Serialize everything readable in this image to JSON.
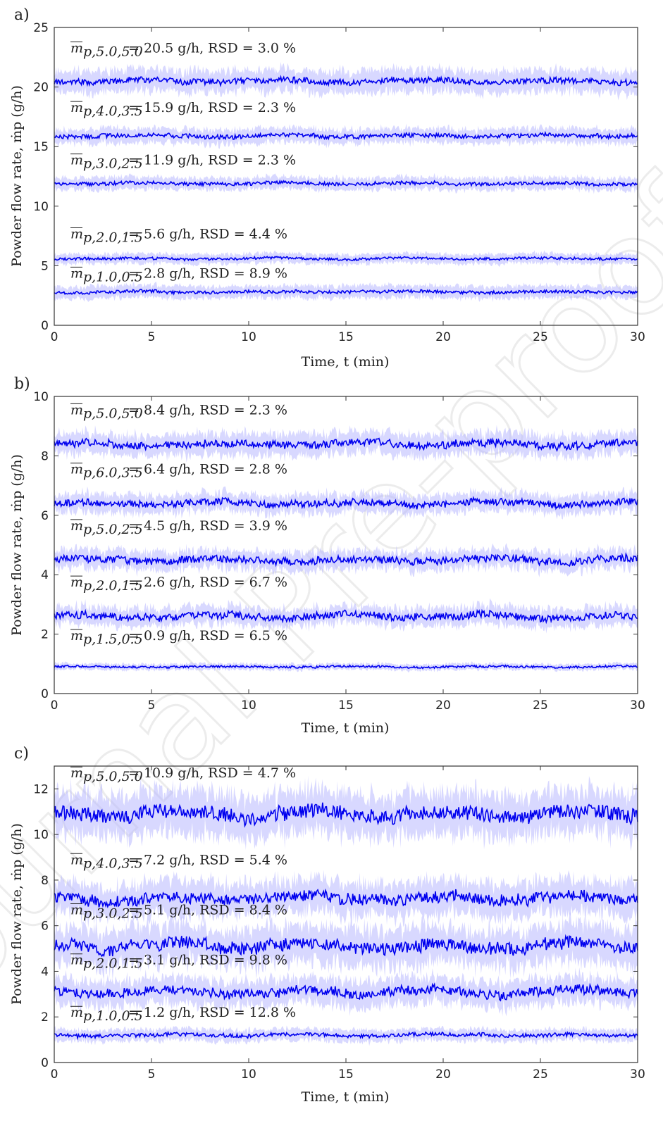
{
  "watermark": "Journal Pre-proof",
  "chart_data": [
    {
      "panel": "a)",
      "type": "line",
      "xlabel": "Time, t (min)",
      "ylabel": "Powder flow rate, ṁp (g/h)",
      "xlim": [
        0,
        30
      ],
      "ylim": [
        0,
        25
      ],
      "xticks": [
        0,
        5,
        10,
        15,
        20,
        25,
        30
      ],
      "yticks": [
        0,
        5,
        10,
        15,
        20,
        25
      ],
      "series": [
        {
          "sub": "p,5.0,5.0",
          "mean": 20.5,
          "rsd": 3.0,
          "label": "= 20.5 g/h, RSD = 3.0 %",
          "amp": 0.35,
          "band": 0.9
        },
        {
          "sub": "p,4.0,3.5",
          "mean": 15.9,
          "rsd": 2.3,
          "label": "= 15.9 g/h, RSD = 2.3 %",
          "amp": 0.25,
          "band": 0.6
        },
        {
          "sub": "p,3.0,2.5",
          "mean": 11.9,
          "rsd": 2.3,
          "label": "= 11.9 g/h, RSD = 2.3 %",
          "amp": 0.2,
          "band": 0.5
        },
        {
          "sub": "p,2.0,1.5",
          "mean": 5.6,
          "rsd": 4.4,
          "label": "= 5.6 g/h, RSD = 4.4 %",
          "amp": 0.15,
          "band": 0.4
        },
        {
          "sub": "p,1.0,0.5",
          "mean": 2.8,
          "rsd": 8.9,
          "label": "= 2.8 g/h, RSD = 8.9 %",
          "amp": 0.18,
          "band": 0.5
        }
      ]
    },
    {
      "panel": "b)",
      "type": "line",
      "xlabel": "Time, t (min)",
      "ylabel": "Powder flow rate, ṁp (g/h)",
      "xlim": [
        0,
        30
      ],
      "ylim": [
        0,
        10
      ],
      "xticks": [
        0,
        5,
        10,
        15,
        20,
        25,
        30
      ],
      "yticks": [
        0,
        2,
        4,
        6,
        8,
        10
      ],
      "series": [
        {
          "sub": "p,5.0,5.0",
          "mean": 8.4,
          "rsd": 2.3,
          "label": "= 8.4 g/h, RSD = 2.3 %",
          "amp": 0.18,
          "band": 0.35
        },
        {
          "sub": "p,6.0,3.5",
          "mean": 6.4,
          "rsd": 2.8,
          "label": "= 6.4 g/h, RSD = 2.8 %",
          "amp": 0.16,
          "band": 0.3
        },
        {
          "sub": "p,5.0,2.5",
          "mean": 4.5,
          "rsd": 3.9,
          "label": "= 4.5 g/h, RSD = 3.9 %",
          "amp": 0.17,
          "band": 0.3
        },
        {
          "sub": "p,2.0,1.5",
          "mean": 2.6,
          "rsd": 6.7,
          "label": "= 2.6 g/h, RSD = 6.7 %",
          "amp": 0.17,
          "band": 0.3
        },
        {
          "sub": "p,1.5,0.5",
          "mean": 0.9,
          "rsd": 6.5,
          "label": "= 0.9 g/h, RSD = 6.5 %",
          "amp": 0.05,
          "band": 0.1
        }
      ]
    },
    {
      "panel": "c)",
      "type": "line",
      "xlabel": "Time, t (min)",
      "ylabel": "Powder flow rate, ṁp (g/h)",
      "xlim": [
        0,
        30
      ],
      "ylim": [
        0,
        13
      ],
      "xticks": [
        0,
        5,
        10,
        15,
        20,
        25,
        30
      ],
      "yticks": [
        0,
        2,
        4,
        6,
        8,
        10,
        12
      ],
      "series": [
        {
          "sub": "p,5.0,5.0",
          "mean": 10.9,
          "rsd": 4.7,
          "label": "= 10.9 g/h, RSD = 4.7 %",
          "amp": 0.45,
          "band": 0.9
        },
        {
          "sub": "p,4.0,3.5",
          "mean": 7.2,
          "rsd": 5.4,
          "label": "= 7.2 g/h, RSD = 5.4 %",
          "amp": 0.35,
          "band": 0.7
        },
        {
          "sub": "p,3.0,2.5",
          "mean": 5.1,
          "rsd": 8.4,
          "label": "= 5.1 g/h, RSD = 8.4 %",
          "amp": 0.4,
          "band": 0.8
        },
        {
          "sub": "p,2.0,1.5",
          "mean": 3.1,
          "rsd": 9.8,
          "label": "= 3.1 g/h, RSD = 9.8 %",
          "amp": 0.3,
          "band": 0.55
        },
        {
          "sub": "p,1.0,0.5",
          "mean": 1.2,
          "rsd": 12.8,
          "label": "= 1.2 g/h, RSD = 12.8 %",
          "amp": 0.12,
          "band": 0.25
        }
      ]
    }
  ]
}
